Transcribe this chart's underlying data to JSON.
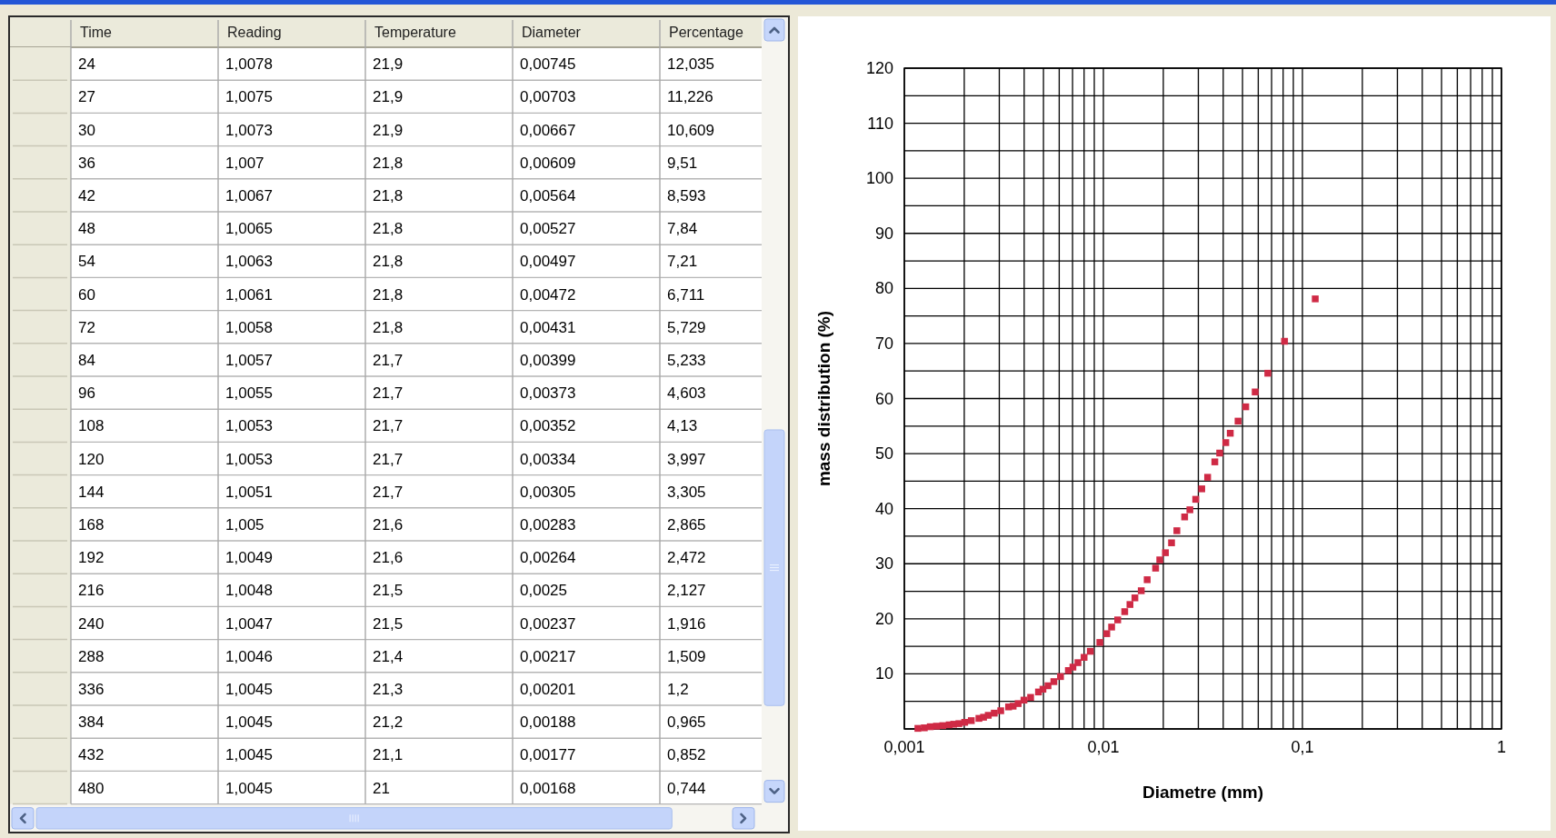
{
  "chart_data": [
    {
      "type": "other",
      "categories": [
        "Time",
        "Reading",
        "Temperature",
        "Diameter",
        "Percentage"
      ],
      "cell_labels": [
        [
          "24",
          "1,0078",
          "21,9",
          "0,00745",
          "12,035"
        ],
        [
          "27",
          "1,0075",
          "21,9",
          "0,00703",
          "11,226"
        ],
        [
          "30",
          "1,0073",
          "21,9",
          "0,00667",
          "10,609"
        ],
        [
          "36",
          "1,007",
          "21,8",
          "0,00609",
          "9,51"
        ],
        [
          "42",
          "1,0067",
          "21,8",
          "0,00564",
          "8,593"
        ],
        [
          "48",
          "1,0065",
          "21,8",
          "0,00527",
          "7,84"
        ],
        [
          "54",
          "1,0063",
          "21,8",
          "0,00497",
          "7,21"
        ],
        [
          "60",
          "1,0061",
          "21,8",
          "0,00472",
          "6,711"
        ],
        [
          "72",
          "1,0058",
          "21,8",
          "0,00431",
          "5,729"
        ],
        [
          "84",
          "1,0057",
          "21,7",
          "0,00399",
          "5,233"
        ],
        [
          "96",
          "1,0055",
          "21,7",
          "0,00373",
          "4,603"
        ],
        [
          "108",
          "1,0053",
          "21,7",
          "0,00352",
          "4,13"
        ],
        [
          "120",
          "1,0053",
          "21,7",
          "0,00334",
          "3,997"
        ],
        [
          "144",
          "1,0051",
          "21,7",
          "0,00305",
          "3,305"
        ],
        [
          "168",
          "1,005",
          "21,6",
          "0,00283",
          "2,865"
        ],
        [
          "192",
          "1,0049",
          "21,6",
          "0,00264",
          "2,472"
        ],
        [
          "216",
          "1,0048",
          "21,5",
          "0,0025",
          "2,127"
        ],
        [
          "240",
          "1,0047",
          "21,5",
          "0,00237",
          "1,916"
        ],
        [
          "288",
          "1,0046",
          "21,4",
          "0,00217",
          "1,509"
        ],
        [
          "336",
          "1,0045",
          "21,3",
          "0,00201",
          "1,2"
        ],
        [
          "384",
          "1,0045",
          "21,2",
          "0,00188",
          "0,965"
        ],
        [
          "432",
          "1,0045",
          "21,1",
          "0,00177",
          "0,852"
        ],
        [
          "480",
          "1,0045",
          "21",
          "0,00168",
          "0,744"
        ]
      ]
    },
    {
      "type": "scatter",
      "xlabel": "Diametre (mm)",
      "ylabel": "mass distribution (%)",
      "color": "#cf2a45",
      "marker": "square",
      "log": "x",
      "grid": true,
      "xlim": [
        0.001,
        1
      ],
      "ylim": [
        0,
        120
      ],
      "xticks": [
        {
          "value": 0.001,
          "label": "0,001"
        },
        {
          "value": 0.002,
          "label": null
        },
        {
          "value": 0.003,
          "label": null
        },
        {
          "value": 0.004,
          "label": null
        },
        {
          "value": 0.005,
          "label": null
        },
        {
          "value": 0.006,
          "label": null
        },
        {
          "value": 0.007,
          "label": null
        },
        {
          "value": 0.008,
          "label": null
        },
        {
          "value": 0.009,
          "label": null
        },
        {
          "value": 0.01,
          "label": "0,01"
        },
        {
          "value": 0.02,
          "label": null
        },
        {
          "value": 0.03,
          "label": null
        },
        {
          "value": 0.04,
          "label": null
        },
        {
          "value": 0.05,
          "label": null
        },
        {
          "value": 0.06,
          "label": null
        },
        {
          "value": 0.07,
          "label": null
        },
        {
          "value": 0.08,
          "label": null
        },
        {
          "value": 0.09,
          "label": null
        },
        {
          "value": 0.1,
          "label": "0,1"
        },
        {
          "value": 0.2,
          "label": null
        },
        {
          "value": 0.3,
          "label": null
        },
        {
          "value": 0.4,
          "label": null
        },
        {
          "value": 0.5,
          "label": null
        },
        {
          "value": 0.6,
          "label": null
        },
        {
          "value": 0.7,
          "label": null
        },
        {
          "value": 0.8,
          "label": null
        },
        {
          "value": 0.9,
          "label": null
        },
        1
      ],
      "yticks": [
        {
          "value": 0,
          "label": null
        },
        {
          "value": 5,
          "label": null
        },
        10,
        {
          "value": 15,
          "label": null
        },
        20,
        {
          "value": 25,
          "label": null
        },
        30,
        {
          "value": 35,
          "label": null
        },
        40,
        {
          "value": 45,
          "label": null
        },
        50,
        {
          "value": 55,
          "label": null
        },
        60,
        {
          "value": 65,
          "label": null
        },
        70,
        {
          "value": 75,
          "label": null
        },
        80,
        {
          "value": 85,
          "label": null
        },
        90,
        {
          "value": 95,
          "label": null
        },
        100,
        {
          "value": 105,
          "label": null
        },
        110,
        {
          "value": 115,
          "label": null
        },
        120
      ],
      "x": [
        0.00117,
        0.00126,
        0.00135,
        0.00145,
        0.00156,
        0.00168,
        0.00177,
        0.00188,
        0.00201,
        0.00217,
        0.00237,
        0.0025,
        0.00264,
        0.00283,
        0.00305,
        0.00334,
        0.00352,
        0.00373,
        0.00399,
        0.00431,
        0.00472,
        0.00497,
        0.00527,
        0.00564,
        0.00609,
        0.00667,
        0.00703,
        0.00745,
        0.008,
        0.0086,
        0.0096,
        0.0104,
        0.011,
        0.0118,
        0.0128,
        0.0136,
        0.0144,
        0.0155,
        0.0166,
        0.0183,
        0.0192,
        0.0205,
        0.022,
        0.0234,
        0.0256,
        0.0272,
        0.0291,
        0.0312,
        0.0334,
        0.0363,
        0.0384,
        0.0412,
        0.0434,
        0.0475,
        0.0519,
        0.0579,
        0.067,
        0.0813,
        0.116
      ],
      "values": [
        0.1,
        0.2,
        0.4,
        0.5,
        0.6,
        0.744,
        0.852,
        0.965,
        1.2,
        1.509,
        1.916,
        2.127,
        2.472,
        2.865,
        3.305,
        3.997,
        4.13,
        4.603,
        5.233,
        5.729,
        6.711,
        7.21,
        7.84,
        8.593,
        9.51,
        10.609,
        11.226,
        12.035,
        13,
        14.1,
        15.7,
        17.3,
        18.5,
        19.8,
        21.3,
        22.6,
        23.8,
        25.1,
        27.1,
        29.2,
        30.7,
        32,
        33.8,
        36,
        38.5,
        39.8,
        41.7,
        43.6,
        45.7,
        48.5,
        50.1,
        52,
        53.7,
        55.9,
        58.5,
        61.2,
        64.6,
        70.4,
        78.1
      ]
    }
  ]
}
